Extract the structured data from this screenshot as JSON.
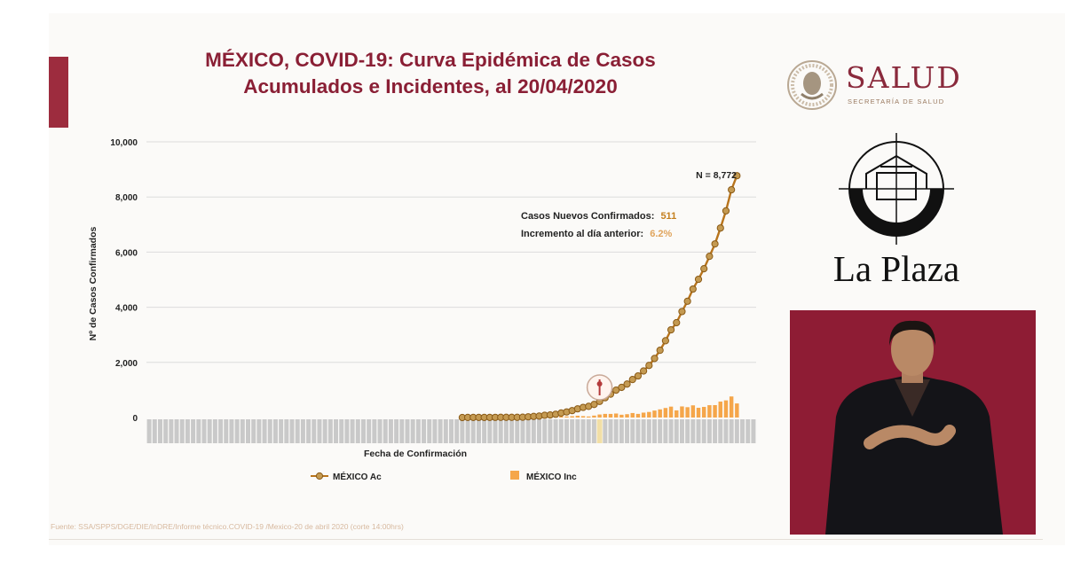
{
  "slide": {
    "title_line1": "MÉXICO, COVID-19: Curva Epidémica de Casos",
    "title_line2": "Acumulados e Incidentes, al 20/04/2020",
    "source": "Fuente: SSA/SPPS/DGE/DIE/InDRE/Informe técnico.COVID-19 /Mexico-20 de abril 2020 (corte 14:00hrs)"
  },
  "logos": {
    "salud_name": "SALUD",
    "salud_sub": "SECRETARÍA DE SALUD",
    "channel_name": "La Plaza"
  },
  "colors": {
    "title": "#8a1f35",
    "accumulated_line": "#b8741c",
    "accumulated_marker": "#c49a52",
    "incident_bar": "#f5a64a",
    "brand_red": "#9d2c3e"
  },
  "icons": {
    "salud_emblem": "mexican-eagle-emblem-icon",
    "channel_logo": "la-plaza-logo-icon",
    "marker": "health-emergency-marker-icon"
  },
  "chart_data": {
    "type": "line",
    "ylabel": "Nº de Casos Confirmados",
    "xlabel": "Fecha de Confirmación",
    "ylim": [
      0,
      10000
    ],
    "yticks": [
      0,
      2000,
      4000,
      6000,
      8000,
      10000
    ],
    "ytick_labels": [
      "0",
      "2,000",
      "4,000",
      "6,000",
      "8,000",
      "10,000"
    ],
    "grid": true,
    "legend_position": "bottom",
    "x_start": "2020-01-01",
    "x_end": "2020-04-20",
    "series": [
      {
        "name": "MÉXICO Ac",
        "kind": "line",
        "x_start": "2020-02-27",
        "values": [
          1,
          4,
          5,
          5,
          5,
          5,
          6,
          7,
          7,
          7,
          8,
          12,
          26,
          41,
          53,
          82,
          93,
          118,
          164,
          203,
          251,
          316,
          367,
          405,
          475,
          585,
          717,
          848,
          993,
          1094,
          1215,
          1378,
          1510,
          1688,
          1890,
          2143,
          2439,
          2785,
          3181,
          3441,
          3844,
          4219,
          4661,
          5014,
          5399,
          5847,
          6297,
          6875,
          7497,
          8261,
          8772
        ]
      },
      {
        "name": "MÉXICO Inc",
        "kind": "bar",
        "x_start": "2020-02-27",
        "values": [
          1,
          3,
          1,
          0,
          0,
          0,
          1,
          1,
          0,
          0,
          1,
          4,
          14,
          15,
          12,
          29,
          11,
          25,
          46,
          39,
          48,
          65,
          51,
          38,
          70,
          110,
          132,
          131,
          145,
          101,
          121,
          163,
          132,
          178,
          202,
          253,
          296,
          346,
          396,
          260,
          403,
          375,
          442,
          353,
          385,
          448,
          450,
          578,
          622,
          764,
          511
        ]
      }
    ],
    "annotations": [
      {
        "text": "N = 8,772"
      },
      {
        "text": "Casos Nuevos Confirmados:",
        "value": "511"
      },
      {
        "text": "Incremento al día anterior:",
        "value": "6.2%"
      }
    ]
  }
}
